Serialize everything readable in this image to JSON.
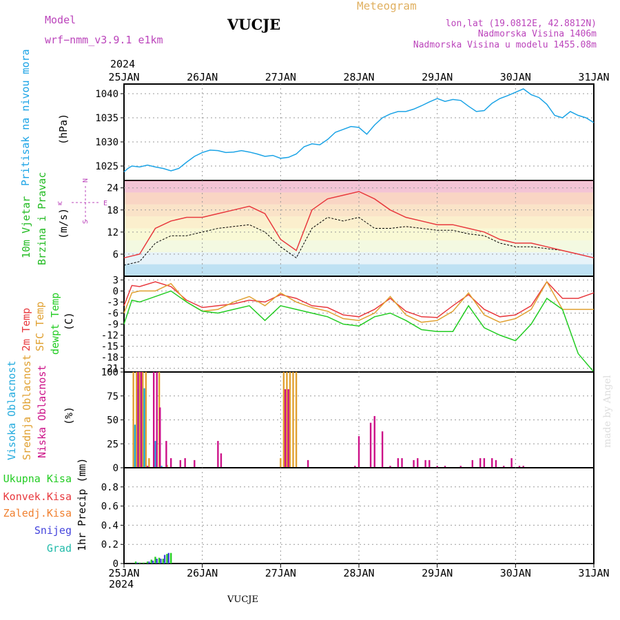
{
  "header": {
    "model_label": "Model",
    "model_name": "wrf−nmm_v3.9.1  e1km",
    "station": "VUCJE",
    "meteogram": "Meteogram",
    "coords": "lon,lat (19.0812E, 42.8812N)",
    "elevation": "Nadmorska Visina 1406m",
    "model_elevation": "Nadmorska Visina u modelu 1455.08m",
    "year": "2024",
    "footer_station": "VUCJE",
    "credit": "made by Angel"
  },
  "colors": {
    "pressure": "#1aa3e6",
    "temp2m": "#e8383d",
    "sfc": "#e0a030",
    "dewpt": "#22cc22",
    "cloud_high": "#22aadd",
    "cloud_mid": "#e0a030",
    "cloud_low": "#cc1188",
    "precip_total": "#22cc22",
    "precip_conv": "#e8383d",
    "precip_frozen": "#f08030",
    "precip_snow": "#4444dd",
    "precip_grad": "#22bbaa",
    "wind_label": "#22bb22",
    "wind_axis_label": "#bb44bb",
    "model_text": "#bb44bb",
    "meteogram_text": "#e0b060"
  },
  "chart_data": [
    {
      "type": "line",
      "panel": "pressure",
      "axis_title": "Pritisak na nivou mora",
      "unit": "(hPa)",
      "x_ticks": [
        "25JAN",
        "26JAN",
        "27JAN",
        "28JAN",
        "29JAN",
        "30JAN",
        "31JAN"
      ],
      "x_range_days": [
        0,
        6
      ],
      "ylim": [
        1022,
        1042
      ],
      "y_ticks": [
        1025,
        1030,
        1035,
        1040
      ],
      "grid": true,
      "series": [
        {
          "color_key": "pressure",
          "x": [
            0,
            0.05,
            0.1,
            0.2,
            0.3,
            0.4,
            0.5,
            0.6,
            0.7,
            0.8,
            0.9,
            1.0,
            1.1,
            1.2,
            1.3,
            1.4,
            1.5,
            1.6,
            1.7,
            1.8,
            1.9,
            2.0,
            2.1,
            2.2,
            2.3,
            2.4,
            2.5,
            2.6,
            2.7,
            2.8,
            2.9,
            3.0,
            3.1,
            3.2,
            3.3,
            3.4,
            3.5,
            3.6,
            3.7,
            3.8,
            3.9,
            4.0,
            4.1,
            4.2,
            4.3,
            4.4,
            4.5,
            4.6,
            4.7,
            4.8,
            4.9,
            5.0,
            5.1,
            5.2,
            5.3,
            5.4,
            5.5,
            5.6,
            5.7,
            5.8,
            5.9,
            6.0
          ],
          "y": [
            1023.8,
            1024.5,
            1025.0,
            1024.8,
            1025.2,
            1024.8,
            1024.5,
            1024.0,
            1024.5,
            1025.8,
            1027.0,
            1027.8,
            1028.3,
            1028.2,
            1027.8,
            1027.9,
            1028.2,
            1027.9,
            1027.5,
            1027.0,
            1027.2,
            1026.6,
            1026.8,
            1027.5,
            1029.0,
            1029.6,
            1029.4,
            1030.5,
            1032.0,
            1032.6,
            1033.2,
            1033.0,
            1031.6,
            1033.5,
            1035.0,
            1035.8,
            1036.3,
            1036.3,
            1036.8,
            1037.5,
            1038.3,
            1039.0,
            1038.4,
            1038.8,
            1038.6,
            1037.4,
            1036.3,
            1036.5,
            1038.0,
            1039.0,
            1039.6,
            1040.3,
            1041.0,
            1039.8,
            1039.2,
            1037.8,
            1035.5,
            1035.0,
            1036.3,
            1035.5,
            1035.0,
            1034.0
          ]
        }
      ]
    },
    {
      "type": "line",
      "panel": "wind",
      "axis_title_top": "10m Vjetar",
      "axis_title_bottom": "Brzina i Pravac",
      "unit": "(m/s)",
      "direction_labels": {
        "w": "w",
        "e": "E",
        "n": "N",
        "s": "S"
      },
      "ylim": [
        0,
        26
      ],
      "y_ticks": [
        6,
        12,
        18,
        24
      ],
      "grid": true,
      "series": [
        {
          "name_key": "speed",
          "color": "#000000",
          "x": [
            0,
            0.2,
            0.4,
            0.6,
            0.8,
            1.0,
            1.2,
            1.4,
            1.6,
            1.8,
            2.0,
            2.2,
            2.4,
            2.6,
            2.8,
            3.0,
            3.2,
            3.4,
            3.6,
            3.8,
            4.0,
            4.2,
            4.4,
            4.6,
            4.8,
            5.0,
            5.2,
            5.4,
            5.6,
            5.8,
            6.0
          ],
          "y": [
            3,
            4,
            9,
            11,
            11,
            12,
            13,
            13.5,
            14,
            12,
            8,
            5,
            13,
            16,
            15,
            16,
            13,
            13,
            13.5,
            13,
            12.5,
            12.5,
            11.5,
            11,
            9,
            8,
            8,
            7.5,
            7,
            6,
            5
          ]
        },
        {
          "name_key": "gust",
          "color": "#e8383d",
          "x": [
            0,
            0.2,
            0.4,
            0.6,
            0.8,
            1.0,
            1.2,
            1.4,
            1.6,
            1.8,
            2.0,
            2.2,
            2.4,
            2.6,
            2.8,
            3.0,
            3.2,
            3.4,
            3.6,
            3.8,
            4.0,
            4.2,
            4.4,
            4.6,
            4.8,
            5.0,
            5.2,
            5.4,
            5.6,
            5.8,
            6.0
          ],
          "y": [
            5,
            6,
            13,
            15,
            16,
            16,
            17,
            18,
            19,
            17,
            10,
            7,
            18,
            21,
            22,
            23,
            21,
            18,
            16,
            15,
            14,
            14,
            13,
            12,
            10,
            9,
            9,
            8,
            7,
            6,
            5
          ]
        }
      ]
    },
    {
      "type": "line",
      "panel": "temperature",
      "axis_title_1": "2m Temp",
      "axis_title_2": "SFC Temp",
      "axis_title_3": "dewpt Temp",
      "unit": "(C)",
      "ylim": [
        -22,
        4
      ],
      "y_ticks": [
        3,
        0,
        -3,
        -6,
        -9,
        -12,
        -15,
        -18,
        -21
      ],
      "grid": true,
      "series": [
        {
          "color_key": "temp2m",
          "x": [
            0,
            0.1,
            0.2,
            0.4,
            0.6,
            0.8,
            1.0,
            1.2,
            1.4,
            1.6,
            1.8,
            2.0,
            2.2,
            2.4,
            2.6,
            2.8,
            3.0,
            3.2,
            3.4,
            3.6,
            3.8,
            4.0,
            4.2,
            4.4,
            4.6,
            4.8,
            5.0,
            5.2,
            5.4,
            5.6,
            5.8,
            6.0
          ],
          "y": [
            -4,
            1.5,
            1.2,
            2.5,
            1.2,
            -2.5,
            -4.5,
            -4,
            -3.5,
            -2.5,
            -3.0,
            -1.0,
            -2,
            -4,
            -4.5,
            -6.5,
            -7,
            -5,
            -2,
            -5.5,
            -7,
            -7.2,
            -4,
            -1,
            -5,
            -7,
            -6.5,
            -4,
            2.5,
            -2,
            -2,
            -0.5
          ]
        },
        {
          "color_key": "sfc",
          "x": [
            0,
            0.1,
            0.2,
            0.4,
            0.6,
            0.8,
            1.0,
            1.2,
            1.4,
            1.6,
            1.8,
            2.0,
            2.2,
            2.4,
            2.6,
            2.8,
            3.0,
            3.2,
            3.4,
            3.6,
            3.8,
            4.0,
            4.2,
            4.4,
            4.6,
            4.8,
            5.0,
            5.2,
            5.4,
            5.6,
            5.8,
            6.0
          ],
          "y": [
            -6,
            -0.5,
            0,
            0,
            2.0,
            -3,
            -5.5,
            -5,
            -3,
            -1.5,
            -4,
            -0.5,
            -3.0,
            -4.5,
            -5.5,
            -7.5,
            -8,
            -6,
            -1.5,
            -6.5,
            -8.5,
            -8,
            -5.5,
            -0.5,
            -6.5,
            -8.5,
            -7.5,
            -5,
            2.5,
            -5,
            -5,
            -5
          ]
        },
        {
          "color_key": "dewpt",
          "x": [
            0,
            0.1,
            0.2,
            0.4,
            0.6,
            0.8,
            1.0,
            1.2,
            1.4,
            1.6,
            1.8,
            2.0,
            2.2,
            2.4,
            2.6,
            2.8,
            3.0,
            3.2,
            3.4,
            3.6,
            3.8,
            4.0,
            4.2,
            4.4,
            4.6,
            4.8,
            5.0,
            5.2,
            5.4,
            5.6,
            5.8,
            6.0
          ],
          "y": [
            -9,
            -2.5,
            -3,
            -1.5,
            0,
            -3,
            -5.5,
            -6,
            -5,
            -4,
            -8,
            -4,
            -5,
            -6,
            -7,
            -9,
            -9.5,
            -7,
            -6,
            -8,
            -10.5,
            -11,
            -11,
            -4,
            -10,
            -12,
            -13.5,
            -9,
            -2,
            -5,
            -17,
            -22
          ]
        }
      ]
    },
    {
      "type": "bar",
      "panel": "cloud",
      "axis_title_1": "Visoka Oblacnost",
      "axis_title_2": "Srednja Oblacnost",
      "axis_title_3": "Niska Oblacnost",
      "unit": "(%)",
      "ylim": [
        0,
        100
      ],
      "y_ticks": [
        0,
        25,
        50,
        75,
        100
      ],
      "grid": true,
      "series": [
        {
          "color_key": "cloud_mid",
          "x": [
            0.12,
            0.16,
            0.2,
            0.24,
            0.28,
            0.32,
            0.45,
            0.55,
            2.0,
            2.04,
            2.08,
            2.12,
            2.16,
            2.2
          ],
          "y": [
            100,
            100,
            100,
            100,
            100,
            10,
            100,
            3,
            10,
            100,
            100,
            100,
            100,
            100
          ]
        },
        {
          "color_key": "cloud_high",
          "x": [
            0.14,
            0.18,
            0.22,
            0.26,
            0.4,
            0.48
          ],
          "y": [
            45,
            82,
            85,
            83,
            28,
            2
          ]
        },
        {
          "color_key": "cloud_low",
          "x": [
            0.18,
            0.22,
            0.3,
            0.38,
            0.42,
            0.46,
            0.54,
            0.6,
            0.72,
            0.78,
            0.9,
            1.2,
            1.24,
            2.06,
            2.1,
            2.35,
            2.95,
            3.0,
            3.15,
            3.2,
            3.3,
            3.4,
            3.5,
            3.55,
            3.7,
            3.75,
            3.85,
            3.9,
            4.0,
            4.1,
            4.3,
            4.45,
            4.55,
            4.6,
            4.7,
            4.75,
            4.85,
            4.95,
            5.05,
            5.1
          ],
          "y": [
            100,
            100,
            2,
            100,
            100,
            63,
            28,
            10,
            8,
            10,
            8,
            28,
            15,
            82,
            82,
            8,
            2,
            33,
            47,
            54,
            38,
            2,
            10,
            10,
            8,
            10,
            8,
            8,
            2,
            2,
            2,
            8,
            10,
            10,
            10,
            8,
            2,
            10,
            2,
            2
          ]
        }
      ]
    },
    {
      "type": "bar",
      "panel": "precip",
      "labels": [
        "Ukupna  Kisa",
        "Konvek.Kisa",
        "Zaledj.Kisa",
        "Snijeg",
        "Grad"
      ],
      "label_color_keys": [
        "precip_total",
        "precip_conv",
        "precip_frozen",
        "precip_snow",
        "precip_grad"
      ],
      "axis_title": "1hr Precip (mm)",
      "ylim": [
        0,
        1.0
      ],
      "y_ticks": [
        0,
        0.2,
        0.4,
        0.6,
        0.8
      ],
      "grid": true,
      "series": [
        {
          "color_key": "precip_total",
          "x": [
            0.15,
            0.2,
            0.25,
            0.3,
            0.35,
            0.4,
            0.45,
            0.5,
            0.55,
            0.6
          ],
          "y": [
            0.02,
            0.01,
            0.01,
            0.02,
            0.04,
            0.07,
            0.06,
            0.05,
            0.1,
            0.11
          ]
        },
        {
          "color_key": "precip_snow",
          "x": [
            0.17,
            0.32,
            0.37,
            0.42,
            0.47,
            0.52,
            0.57
          ],
          "y": [
            0.01,
            0.02,
            0.03,
            0.05,
            0.05,
            0.09,
            0.11
          ]
        }
      ]
    }
  ]
}
